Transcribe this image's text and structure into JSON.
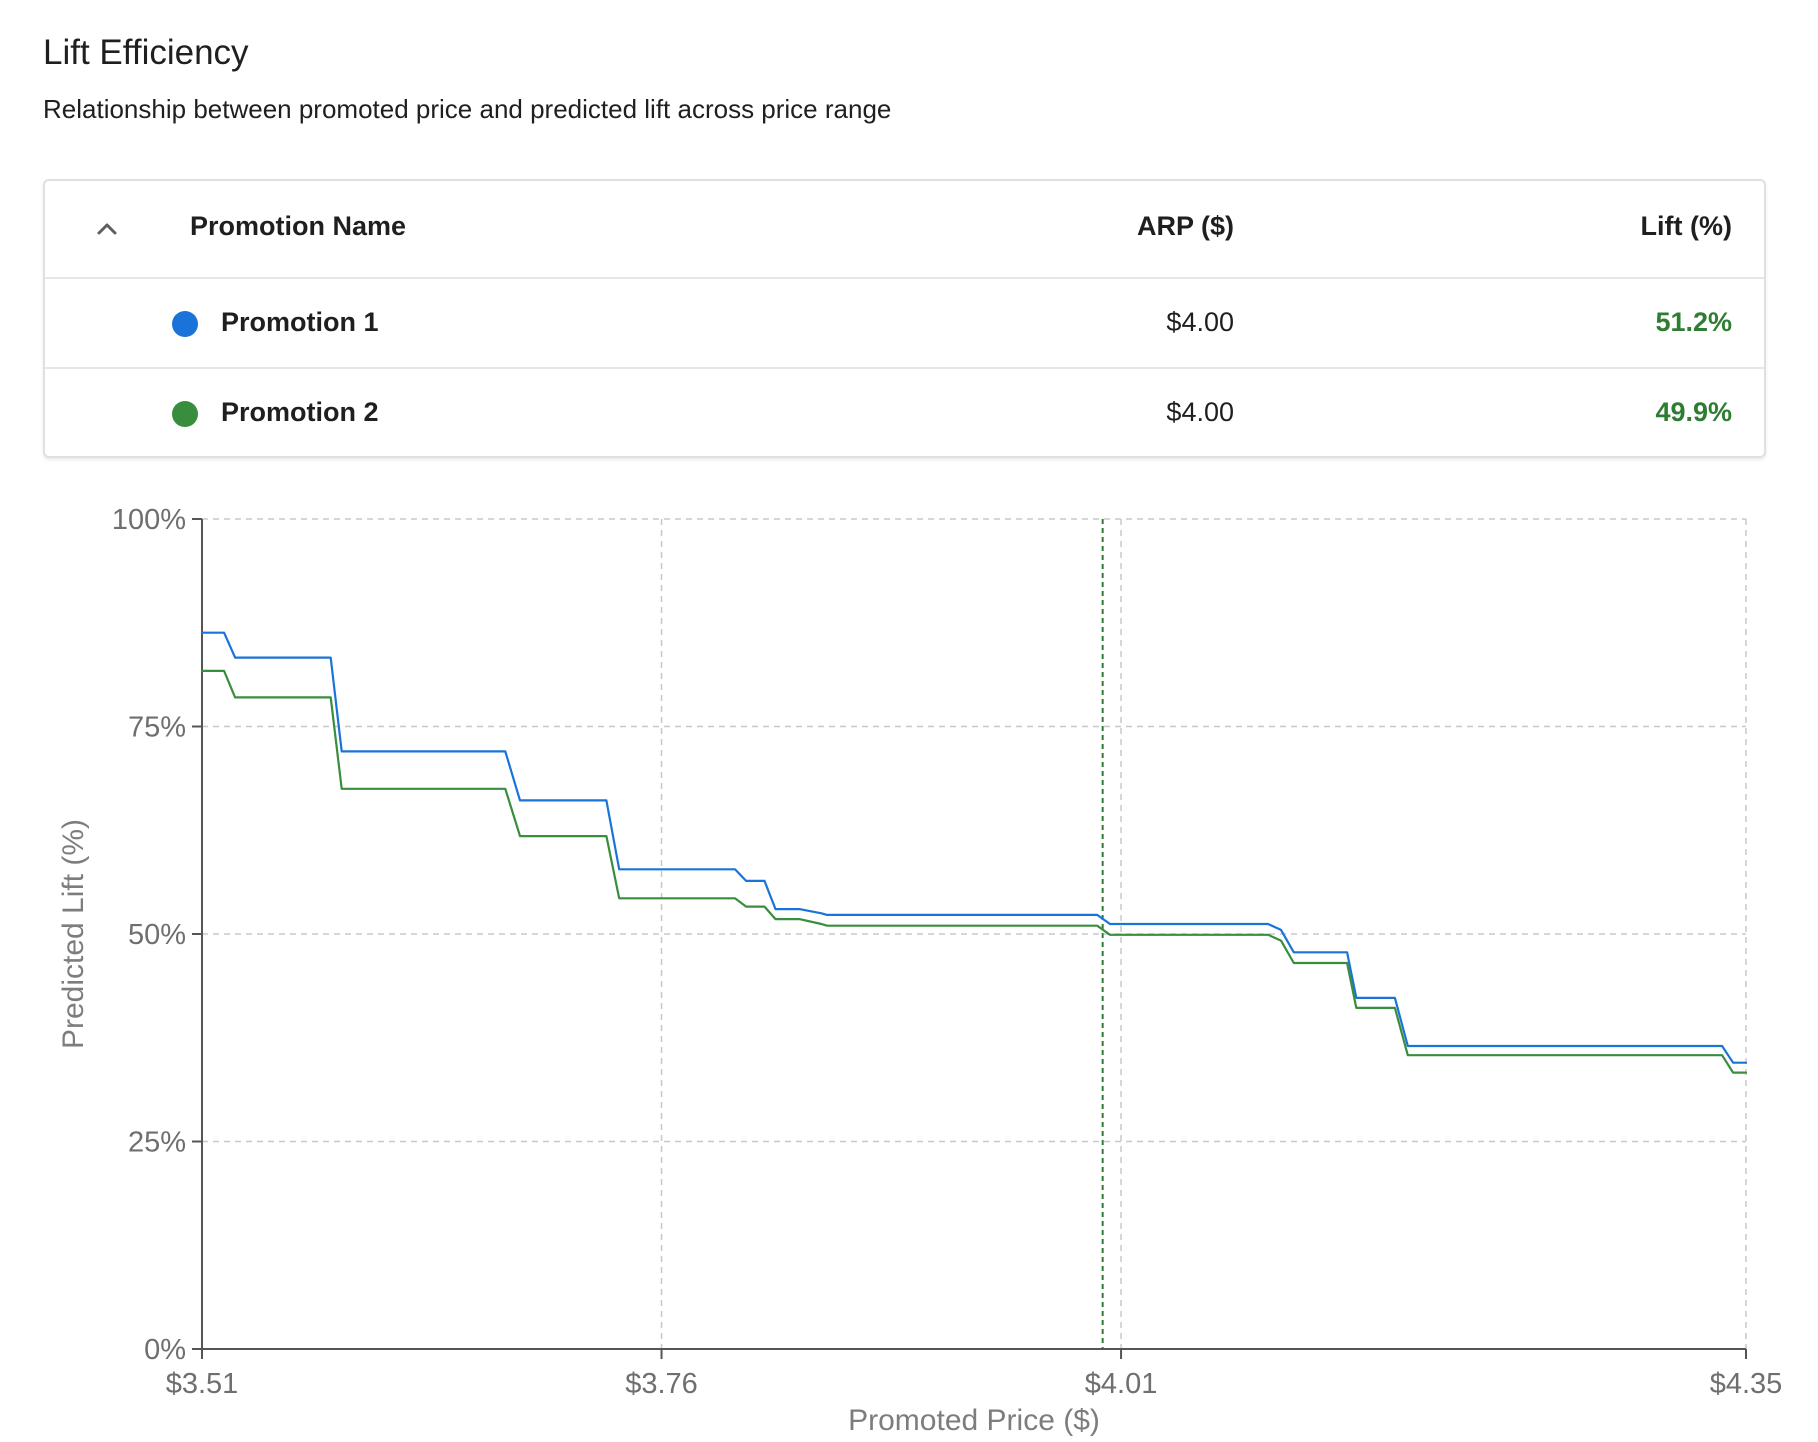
{
  "header": {
    "title": "Lift Efficiency",
    "subtitle": "Relationship between promoted price and predicted lift across price range"
  },
  "legend_table": {
    "columns": {
      "name": "Promotion Name",
      "arp": "ARP ($)",
      "lift": "Lift (%)"
    },
    "rows": [
      {
        "name": "Promotion 1",
        "arp": "$4.00",
        "lift": "51.2%",
        "color": "#1a73d9",
        "lift_color": "#2e7d32"
      },
      {
        "name": "Promotion 2",
        "arp": "$4.00",
        "lift": "49.9%",
        "color": "#388e3c",
        "lift_color": "#2e7d32"
      }
    ]
  },
  "chart_data": {
    "type": "line",
    "xlabel": "Promoted Price ($)",
    "ylabel": "Predicted Lift (%)",
    "xlim": [
      3.51,
      4.35
    ],
    "ylim": [
      0,
      100
    ],
    "x_ticks": [
      3.51,
      3.76,
      4.01,
      4.35
    ],
    "x_tick_labels": [
      "$3.51",
      "$3.76",
      "$4.01",
      "$4.35"
    ],
    "y_ticks": [
      0,
      25,
      50,
      75,
      100
    ],
    "y_tick_labels": [
      "0%",
      "25%",
      "50%",
      "75%",
      "100%"
    ],
    "grid": true,
    "reference_line": {
      "x": 4.0,
      "color": "#2e7d32",
      "style": "dashed"
    },
    "series": [
      {
        "name": "Promotion 1",
        "color": "#1a73d9",
        "x": [
          3.51,
          3.522,
          3.528,
          3.58,
          3.586,
          3.675,
          3.683,
          3.73,
          3.737,
          3.8,
          3.806,
          3.816,
          3.822,
          3.835,
          3.847,
          3.85,
          3.9,
          3.997,
          4.004,
          4.09,
          4.097,
          4.104,
          4.133,
          4.138,
          4.159,
          4.166,
          4.337,
          4.343,
          4.35
        ],
        "values": [
          86.3,
          86.3,
          83.3,
          83.3,
          72.0,
          72.0,
          66.1,
          66.1,
          57.8,
          57.8,
          56.4,
          56.4,
          53.0,
          53.0,
          52.5,
          52.3,
          52.3,
          52.3,
          51.2,
          51.2,
          50.5,
          47.8,
          47.8,
          42.3,
          42.3,
          36.5,
          36.5,
          34.5,
          34.5
        ]
      },
      {
        "name": "Promotion 2",
        "color": "#388e3c",
        "x": [
          3.51,
          3.522,
          3.528,
          3.58,
          3.586,
          3.675,
          3.683,
          3.73,
          3.737,
          3.8,
          3.806,
          3.816,
          3.822,
          3.835,
          3.847,
          3.85,
          3.9,
          3.997,
          4.004,
          4.09,
          4.097,
          4.104,
          4.133,
          4.138,
          4.159,
          4.166,
          4.337,
          4.343,
          4.35
        ],
        "values": [
          81.7,
          81.7,
          78.5,
          78.5,
          67.5,
          67.5,
          61.8,
          61.8,
          54.3,
          54.3,
          53.3,
          53.3,
          51.8,
          51.8,
          51.2,
          51.0,
          51.0,
          51.0,
          49.9,
          49.9,
          49.2,
          46.5,
          46.5,
          41.1,
          41.1,
          35.4,
          35.4,
          33.3,
          33.3
        ]
      }
    ]
  }
}
